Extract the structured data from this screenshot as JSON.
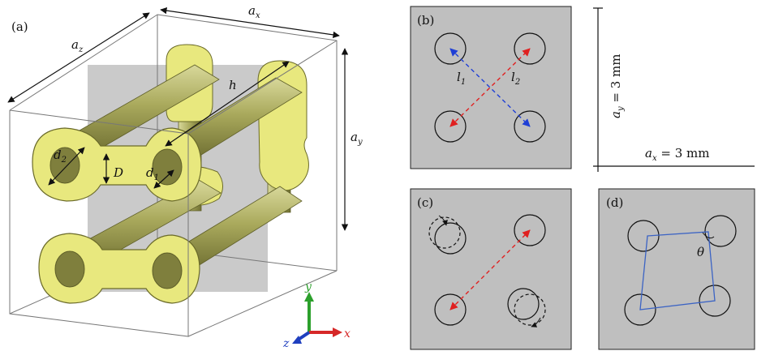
{
  "panel_a": {
    "tag": "(a)",
    "dims": {
      "az": {
        "sym": "a",
        "sub": "z"
      },
      "ax": {
        "sym": "a",
        "sub": "x"
      },
      "ay": {
        "sym": "a",
        "sub": "y"
      },
      "h": {
        "sym": "h"
      },
      "d2": {
        "sym": "d",
        "sub": "2"
      },
      "d1": {
        "sym": "d",
        "sub": "1"
      },
      "D": {
        "sym": "D"
      }
    },
    "axes": {
      "y": "y",
      "z": "z",
      "x": "x"
    },
    "colors": {
      "ring": "#e8e87e",
      "ring_stroke": "#6b6b2a",
      "rod_light": "#c8c88a",
      "rod_dark": "#7a7a3a",
      "plane": "#b8b8b8",
      "axis_x": "#d62828",
      "axis_y": "#2ca02c",
      "axis_z": "#1f3fbf"
    }
  },
  "panel_b": {
    "tag": "(b)",
    "l1": {
      "sym": "l",
      "sub": "1"
    },
    "l2": {
      "sym": "l",
      "sub": "2"
    },
    "colors": {
      "bg": "#bfbfbf",
      "blue": "#1f3fd6",
      "red": "#e02020"
    }
  },
  "scale": {
    "ay": {
      "sym": "a",
      "sub": "y",
      "rest": " = 3 mm"
    },
    "ax": {
      "sym": "a",
      "sub": "x",
      "rest": " = 3 mm"
    }
  },
  "panel_c": {
    "tag": "(c)"
  },
  "panel_d": {
    "tag": "(d)",
    "theta": "θ",
    "colors": {
      "quad": "#3b63c4"
    }
  }
}
